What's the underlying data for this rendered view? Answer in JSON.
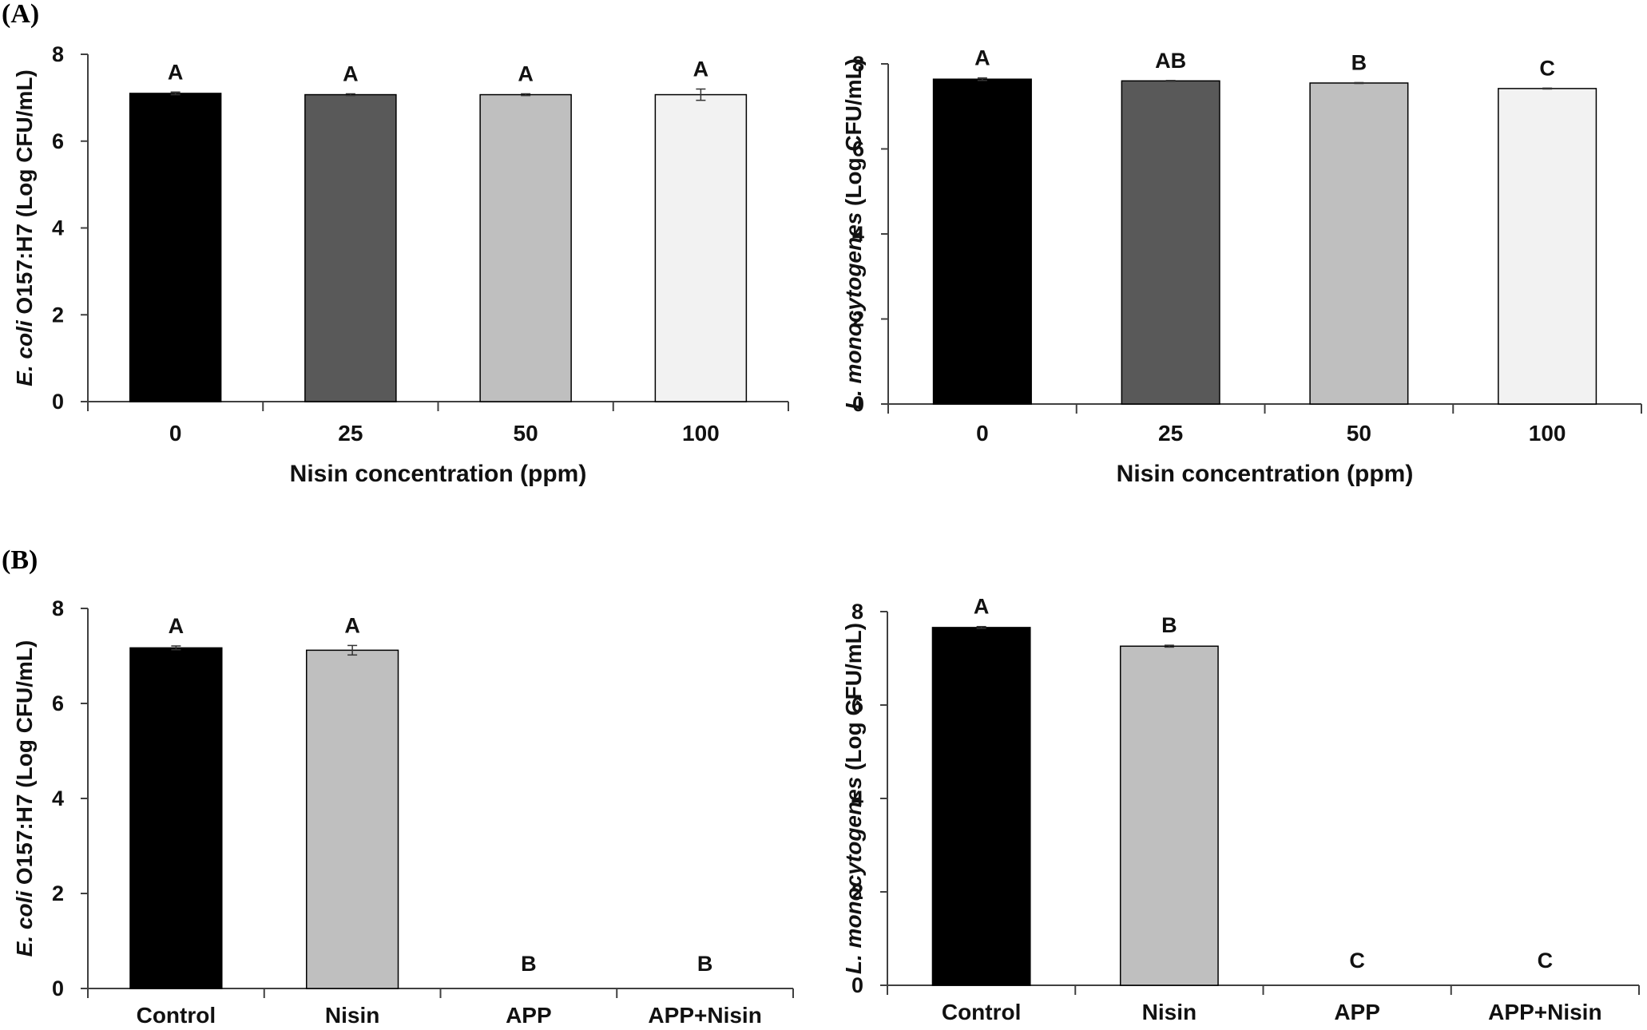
{
  "panel_labels": [
    "(A)",
    "(B)"
  ],
  "colors": {
    "bar_black": "#000000",
    "bar_dark": "#595959",
    "bar_light": "#bfbfbf",
    "bar_white": "#f2f2f2",
    "axis": "#404040"
  },
  "chart_data": [
    {
      "type": "bar",
      "panel": "(A)",
      "title": "",
      "xlabel": "Nisin concentration (ppm)",
      "ylabel_italic": "E. coli",
      "ylabel_rest": " O157:H7 (Log CFU/mL)",
      "categories": [
        "0",
        "25",
        "50",
        "100"
      ],
      "values": [
        7.1,
        7.07,
        7.07,
        7.07
      ],
      "errors": [
        0.03,
        0.02,
        0.02,
        0.13
      ],
      "significance": [
        "A",
        "A",
        "A",
        "A"
      ],
      "bar_colors": [
        "#000000",
        "#595959",
        "#bfbfbf",
        "#f2f2f2"
      ],
      "ylim": [
        0,
        8
      ],
      "yticks": [
        "0",
        "2",
        "4",
        "6",
        "8"
      ],
      "grid": false,
      "legend": "none"
    },
    {
      "type": "bar",
      "panel": "(A)",
      "title": "",
      "xlabel": "Nisin concentration (ppm)",
      "ylabel_italic": "L. monocytogenes",
      "ylabel_rest": " (Log CFU/mL)",
      "categories": [
        "0",
        "25",
        "50",
        "100"
      ],
      "values": [
        7.64,
        7.6,
        7.55,
        7.42
      ],
      "errors": [
        0.03,
        0.01,
        0.01,
        0.01
      ],
      "significance": [
        "A",
        "AB",
        "B",
        "C"
      ],
      "bar_colors": [
        "#000000",
        "#595959",
        "#bfbfbf",
        "#f2f2f2"
      ],
      "ylim": [
        0,
        8
      ],
      "yticks": [
        "0",
        "2",
        "4",
        "6",
        "8"
      ],
      "grid": false,
      "legend": "none"
    },
    {
      "type": "bar",
      "panel": "(B)",
      "title": "",
      "xlabel": "",
      "ylabel_italic": "E. coli",
      "ylabel_rest": " O157:H7 (Log CFU/mL)",
      "categories": [
        "Control",
        "Nisin",
        "APP",
        "APP+Nisin"
      ],
      "values": [
        7.17,
        7.12,
        0,
        0
      ],
      "errors": [
        0.04,
        0.1,
        0,
        0
      ],
      "significance": [
        "A",
        "A",
        "B",
        "B"
      ],
      "bar_colors": [
        "#000000",
        "#bfbfbf",
        "#bfbfbf",
        "#f2f2f2"
      ],
      "ylim": [
        0,
        8
      ],
      "yticks": [
        "0",
        "2",
        "4",
        "6",
        "8"
      ],
      "grid": false,
      "legend": "none"
    },
    {
      "type": "bar",
      "panel": "(B)",
      "title": "",
      "xlabel": "",
      "ylabel_italic": "L. monocytogenes",
      "ylabel_rest": " (Log CFU/mL)",
      "categories": [
        "Control",
        "Nisin",
        "APP",
        "APP+Nisin"
      ],
      "values": [
        7.66,
        7.26,
        0,
        0
      ],
      "errors": [
        0.02,
        0.02,
        0,
        0
      ],
      "significance": [
        "A",
        "B",
        "C",
        "C"
      ],
      "bar_colors": [
        "#000000",
        "#bfbfbf",
        "#bfbfbf",
        "#f2f2f2"
      ],
      "ylim": [
        0,
        8
      ],
      "yticks": [
        "0",
        "2",
        "4",
        "6",
        "8"
      ],
      "grid": false,
      "legend": "none"
    }
  ]
}
